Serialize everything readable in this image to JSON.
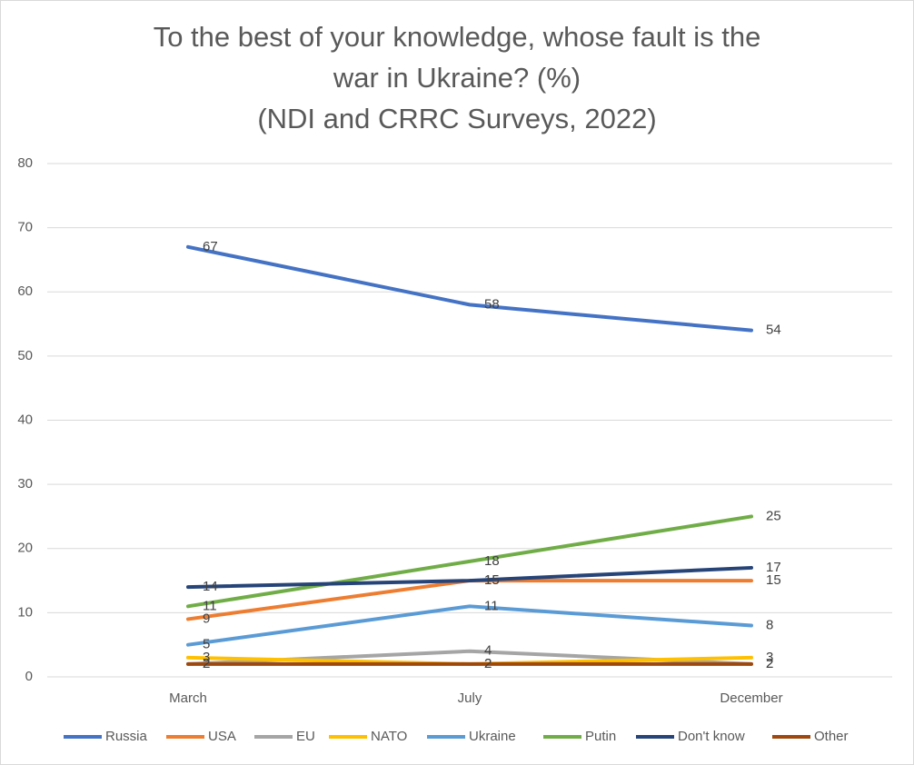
{
  "chart_data": {
    "type": "line",
    "title": [
      "To the best of your knowledge, whose fault is the",
      "war in Ukraine? (%)",
      "(NDI and CRRC Surveys, 2022)"
    ],
    "categories": [
      "March",
      "July",
      "December"
    ],
    "series": [
      {
        "name": "Russia",
        "color": "#4472c4",
        "values": [
          67,
          58,
          54
        ]
      },
      {
        "name": "USA",
        "color": "#ed7d31",
        "values": [
          9,
          15,
          15
        ]
      },
      {
        "name": "EU",
        "color": "#a5a5a5",
        "values": [
          2,
          4,
          2
        ]
      },
      {
        "name": "NATO",
        "color": "#ffc000",
        "values": [
          3,
          2,
          3
        ]
      },
      {
        "name": "Ukraine",
        "color": "#5b9bd5",
        "values": [
          5,
          11,
          8
        ]
      },
      {
        "name": "Putin",
        "color": "#70ad47",
        "values": [
          11,
          18,
          25
        ]
      },
      {
        "name": "Don't know",
        "color": "#264478",
        "values": [
          14,
          15,
          17
        ]
      },
      {
        "name": "Other",
        "color": "#9e480e",
        "values": [
          2,
          2,
          2
        ]
      }
    ],
    "ylim": [
      0,
      80
    ],
    "yticks": [
      0,
      10,
      20,
      30,
      40,
      50,
      60,
      70,
      80
    ],
    "grid": true,
    "legend": "bottom"
  }
}
